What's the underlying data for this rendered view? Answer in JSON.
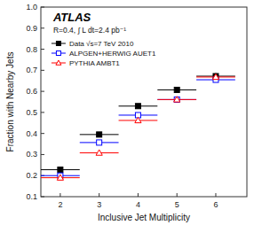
{
  "chart_data": {
    "type": "errorbar",
    "title": "ATLAS",
    "subtitle": "R=0.4, ∫ L dt=2.4 pb⁻¹",
    "xlabel": "Inclusive Jet Multiplicity",
    "ylabel": "Fraction with Nearby Jets",
    "x": [
      2,
      3,
      4,
      5,
      6
    ],
    "xlim": [
      1.5,
      6.8
    ],
    "ylim": [
      0.1,
      1.0
    ],
    "xticks": [
      2,
      3,
      4,
      5,
      6
    ],
    "yticks": [
      0.1,
      0.2,
      0.3,
      0.4,
      0.5,
      0.6,
      0.7,
      0.8,
      0.9,
      {
        "value": 1.0,
        "label": "1.0"
      }
    ],
    "legend": "top-left",
    "series": [
      {
        "name": "Data √s=7 TeV 2010",
        "color": "black",
        "marker": "square",
        "values": [
          0.228,
          0.395,
          0.53,
          0.607,
          0.672
        ],
        "xerr": [
          0.5,
          0.5,
          0.5,
          0.5,
          0.5
        ],
        "yerr": [
          0.005,
          0.006,
          0.007,
          0.008,
          0.015
        ]
      },
      {
        "name": "ALPGEN+HERWIG AUET1",
        "color": "blue",
        "marker": "square-open",
        "values": [
          0.2,
          0.357,
          0.487,
          0.561,
          0.655
        ],
        "xerr": [
          0.5,
          0.5,
          0.5,
          0.5,
          0.5
        ],
        "yerr": [
          0.003,
          0.004,
          0.005,
          0.006,
          0.01
        ]
      },
      {
        "name": "PYTHIA AMBT1",
        "color": "red",
        "marker": "triangle-open",
        "values": [
          0.19,
          0.308,
          0.462,
          0.561,
          0.668
        ],
        "xerr": [
          0.5,
          0.5,
          0.5,
          0.5,
          0.5
        ],
        "yerr": [
          0.003,
          0.004,
          0.005,
          0.006,
          0.01
        ]
      }
    ]
  }
}
